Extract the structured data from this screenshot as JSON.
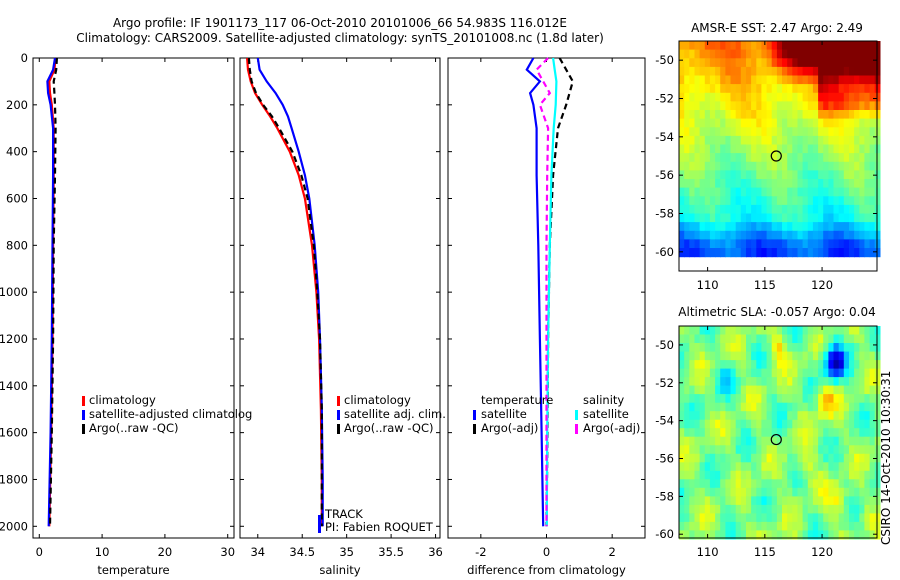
{
  "title": {
    "line1": "Argo profile: IF 1901173_117 06-Oct-2010 20101006_66 54.983S 116.012E",
    "line2": "Climatology: CARS2009. Satellite-adjusted climatology: synTS_20101008.nc (1.8d later)"
  },
  "stamp": "CSIRO 14-Oct-2010 10:30:31",
  "colors": {
    "climatology": "#ff0000",
    "satellite": "#0000ff",
    "argo": "#000000",
    "cyan": "#00ffff",
    "magenta": "#ff00ff"
  },
  "chart_data": [
    {
      "type": "line",
      "xlabel": "temperature",
      "ylabel": "",
      "xlim": [
        -1,
        31
      ],
      "ylim": [
        2050,
        0
      ],
      "xticks": [
        0,
        10,
        20,
        30
      ],
      "yticks": [
        0,
        200,
        400,
        600,
        800,
        1000,
        1200,
        1400,
        1600,
        1800,
        2000
      ],
      "legend": {
        "position": "lower-right",
        "entries": [
          "climatology",
          "satellite-adjusted climatolog",
          "Argo(..raw -QC)"
        ]
      },
      "series": [
        {
          "name": "climatology",
          "color": "#ff0000",
          "dash": "",
          "depth": [
            0,
            50,
            100,
            150,
            200,
            300,
            500,
            800,
            1200,
            1600,
            2000
          ],
          "values": [
            2.6,
            2.4,
            1.6,
            1.7,
            2.0,
            2.3,
            2.3,
            2.2,
            2.1,
            1.9,
            1.6
          ]
        },
        {
          "name": "satellite-adjusted climatology",
          "color": "#0000ff",
          "dash": "",
          "depth": [
            0,
            50,
            100,
            150,
            200,
            300,
            500,
            800,
            1200,
            1600,
            2000
          ],
          "values": [
            2.5,
            2.2,
            1.3,
            1.4,
            1.8,
            2.2,
            2.2,
            2.1,
            2.0,
            1.8,
            1.5
          ]
        },
        {
          "name": "Argo(..raw -QC)",
          "color": "#000000",
          "dash": "6,4",
          "depth": [
            0,
            50,
            100,
            150,
            200,
            300,
            500,
            800,
            1200,
            1600,
            2000
          ],
          "values": [
            2.8,
            2.7,
            2.3,
            2.4,
            2.5,
            2.6,
            2.5,
            2.3,
            2.2,
            2.0,
            1.7
          ]
        }
      ]
    },
    {
      "type": "line",
      "xlabel": "salinity",
      "ylabel": "",
      "xlim": [
        33.8,
        36.05
      ],
      "ylim": [
        2050,
        0
      ],
      "xticks": [
        34,
        34.5,
        35,
        35.5,
        36
      ],
      "yticks": [
        0,
        200,
        400,
        600,
        800,
        1000,
        1200,
        1400,
        1600,
        1800,
        2000
      ],
      "legend": {
        "position": "lower-right",
        "entries": [
          "climatology",
          "satellite adj. clim.",
          "Argo(..raw -QC)"
        ]
      },
      "annotation": {
        "line1": "TRACK",
        "line2": "PI: Fabien ROQUET"
      },
      "series": [
        {
          "name": "climatology",
          "color": "#ff0000",
          "dash": "",
          "depth": [
            0,
            50,
            100,
            150,
            200,
            250,
            300,
            400,
            500,
            600,
            800,
            1000,
            1200,
            1500,
            1800,
            2000
          ],
          "values": [
            33.88,
            33.89,
            33.92,
            33.97,
            34.05,
            34.14,
            34.22,
            34.36,
            34.46,
            34.53,
            34.61,
            34.66,
            34.69,
            34.71,
            34.72,
            34.72
          ]
        },
        {
          "name": "satellite adj. clim.",
          "color": "#0000ff",
          "dash": "",
          "depth": [
            0,
            50,
            100,
            150,
            200,
            250,
            300,
            400,
            500,
            600,
            800,
            1000,
            1200,
            1500,
            1800,
            2000
          ],
          "values": [
            34.0,
            34.02,
            34.1,
            34.2,
            34.28,
            34.34,
            34.38,
            34.46,
            34.53,
            34.58,
            34.64,
            34.68,
            34.7,
            34.72,
            34.73,
            34.73
          ]
        },
        {
          "name": "Argo(..raw -QC)",
          "color": "#000000",
          "dash": "6,4",
          "depth": [
            0,
            50,
            100,
            150,
            200,
            250,
            300,
            400,
            500,
            600,
            800,
            1000,
            1200,
            1500,
            1800,
            2000
          ],
          "values": [
            33.9,
            33.91,
            33.93,
            33.98,
            34.06,
            34.16,
            34.24,
            34.39,
            34.49,
            34.56,
            34.63,
            34.67,
            34.7,
            34.72,
            34.72,
            34.72
          ]
        }
      ]
    },
    {
      "type": "line",
      "xlabel": "difference from climatology",
      "ylabel": "",
      "xlim": [
        -3,
        3
      ],
      "ylim": [
        2050,
        0
      ],
      "xticks": [
        -2,
        0,
        2
      ],
      "yticks": [
        0,
        200,
        400,
        600,
        800,
        1000,
        1200,
        1400,
        1600,
        1800,
        2000
      ],
      "legend": {
        "position": "lower",
        "temperature_header": "temperature",
        "salinity_header": "salinity",
        "entries": [
          "satellite",
          "Argo(-adj)",
          "satellite",
          "Argo(-adj)"
        ]
      },
      "series": [
        {
          "name": "temperature satellite",
          "color": "#0000ff",
          "dash": "",
          "depth": [
            0,
            50,
            100,
            150,
            200,
            300,
            500,
            800,
            1200,
            1600,
            2000
          ],
          "values": [
            -0.4,
            -0.6,
            -0.2,
            -0.5,
            -0.4,
            -0.3,
            -0.3,
            -0.25,
            -0.2,
            -0.15,
            -0.1
          ]
        },
        {
          "name": "temperature Argo(-adj)",
          "color": "#000000",
          "dash": "6,4",
          "depth": [
            0,
            50,
            100,
            150,
            200,
            300,
            500,
            800,
            1200,
            1600,
            2000
          ],
          "values": [
            0.4,
            0.6,
            0.8,
            0.7,
            0.6,
            0.35,
            0.2,
            0.1,
            0.05,
            0.03,
            0.0
          ]
        },
        {
          "name": "salinity satellite",
          "color": "#00ffff",
          "dash": "",
          "depth": [
            0,
            50,
            100,
            200,
            300,
            500,
            800,
            1200,
            1600,
            2000
          ],
          "values": [
            0.2,
            0.25,
            0.3,
            0.28,
            0.22,
            0.15,
            0.1,
            0.05,
            0.02,
            0.01
          ]
        },
        {
          "name": "salinity Argo(-adj)",
          "color": "#ff00ff",
          "dash": "6,4",
          "depth": [
            0,
            50,
            100,
            150,
            200,
            300,
            500,
            800,
            1200,
            1600,
            2000
          ],
          "values": [
            0.05,
            -0.3,
            -0.1,
            0.1,
            -0.2,
            0.05,
            0.02,
            0.0,
            0.0,
            0.0,
            0.0
          ]
        }
      ]
    },
    {
      "type": "heatmap",
      "title": "AMSR-E SST: 2.47 Argo: 2.49",
      "xlim": [
        107.5,
        124.8
      ],
      "ylim": [
        -61,
        -49
      ],
      "xticks": [
        110,
        115,
        120
      ],
      "yticks": [
        -50,
        -52,
        -54,
        -56,
        -58,
        -60
      ],
      "marker": {
        "lon": 116.0,
        "lat": -55.0
      },
      "data_extent": {
        "lat_min": -60.2,
        "lat_max": -49
      }
    },
    {
      "type": "heatmap",
      "title": "Altimetric SLA: -0.057 Argo: 0.04",
      "xlim": [
        107.5,
        124.8
      ],
      "ylim": [
        -60.2,
        -49
      ],
      "xticks": [
        110,
        115,
        120
      ],
      "yticks": [
        -50,
        -52,
        -54,
        -56,
        -58,
        -60
      ],
      "marker": {
        "lon": 116.0,
        "lat": -55.0
      }
    }
  ]
}
